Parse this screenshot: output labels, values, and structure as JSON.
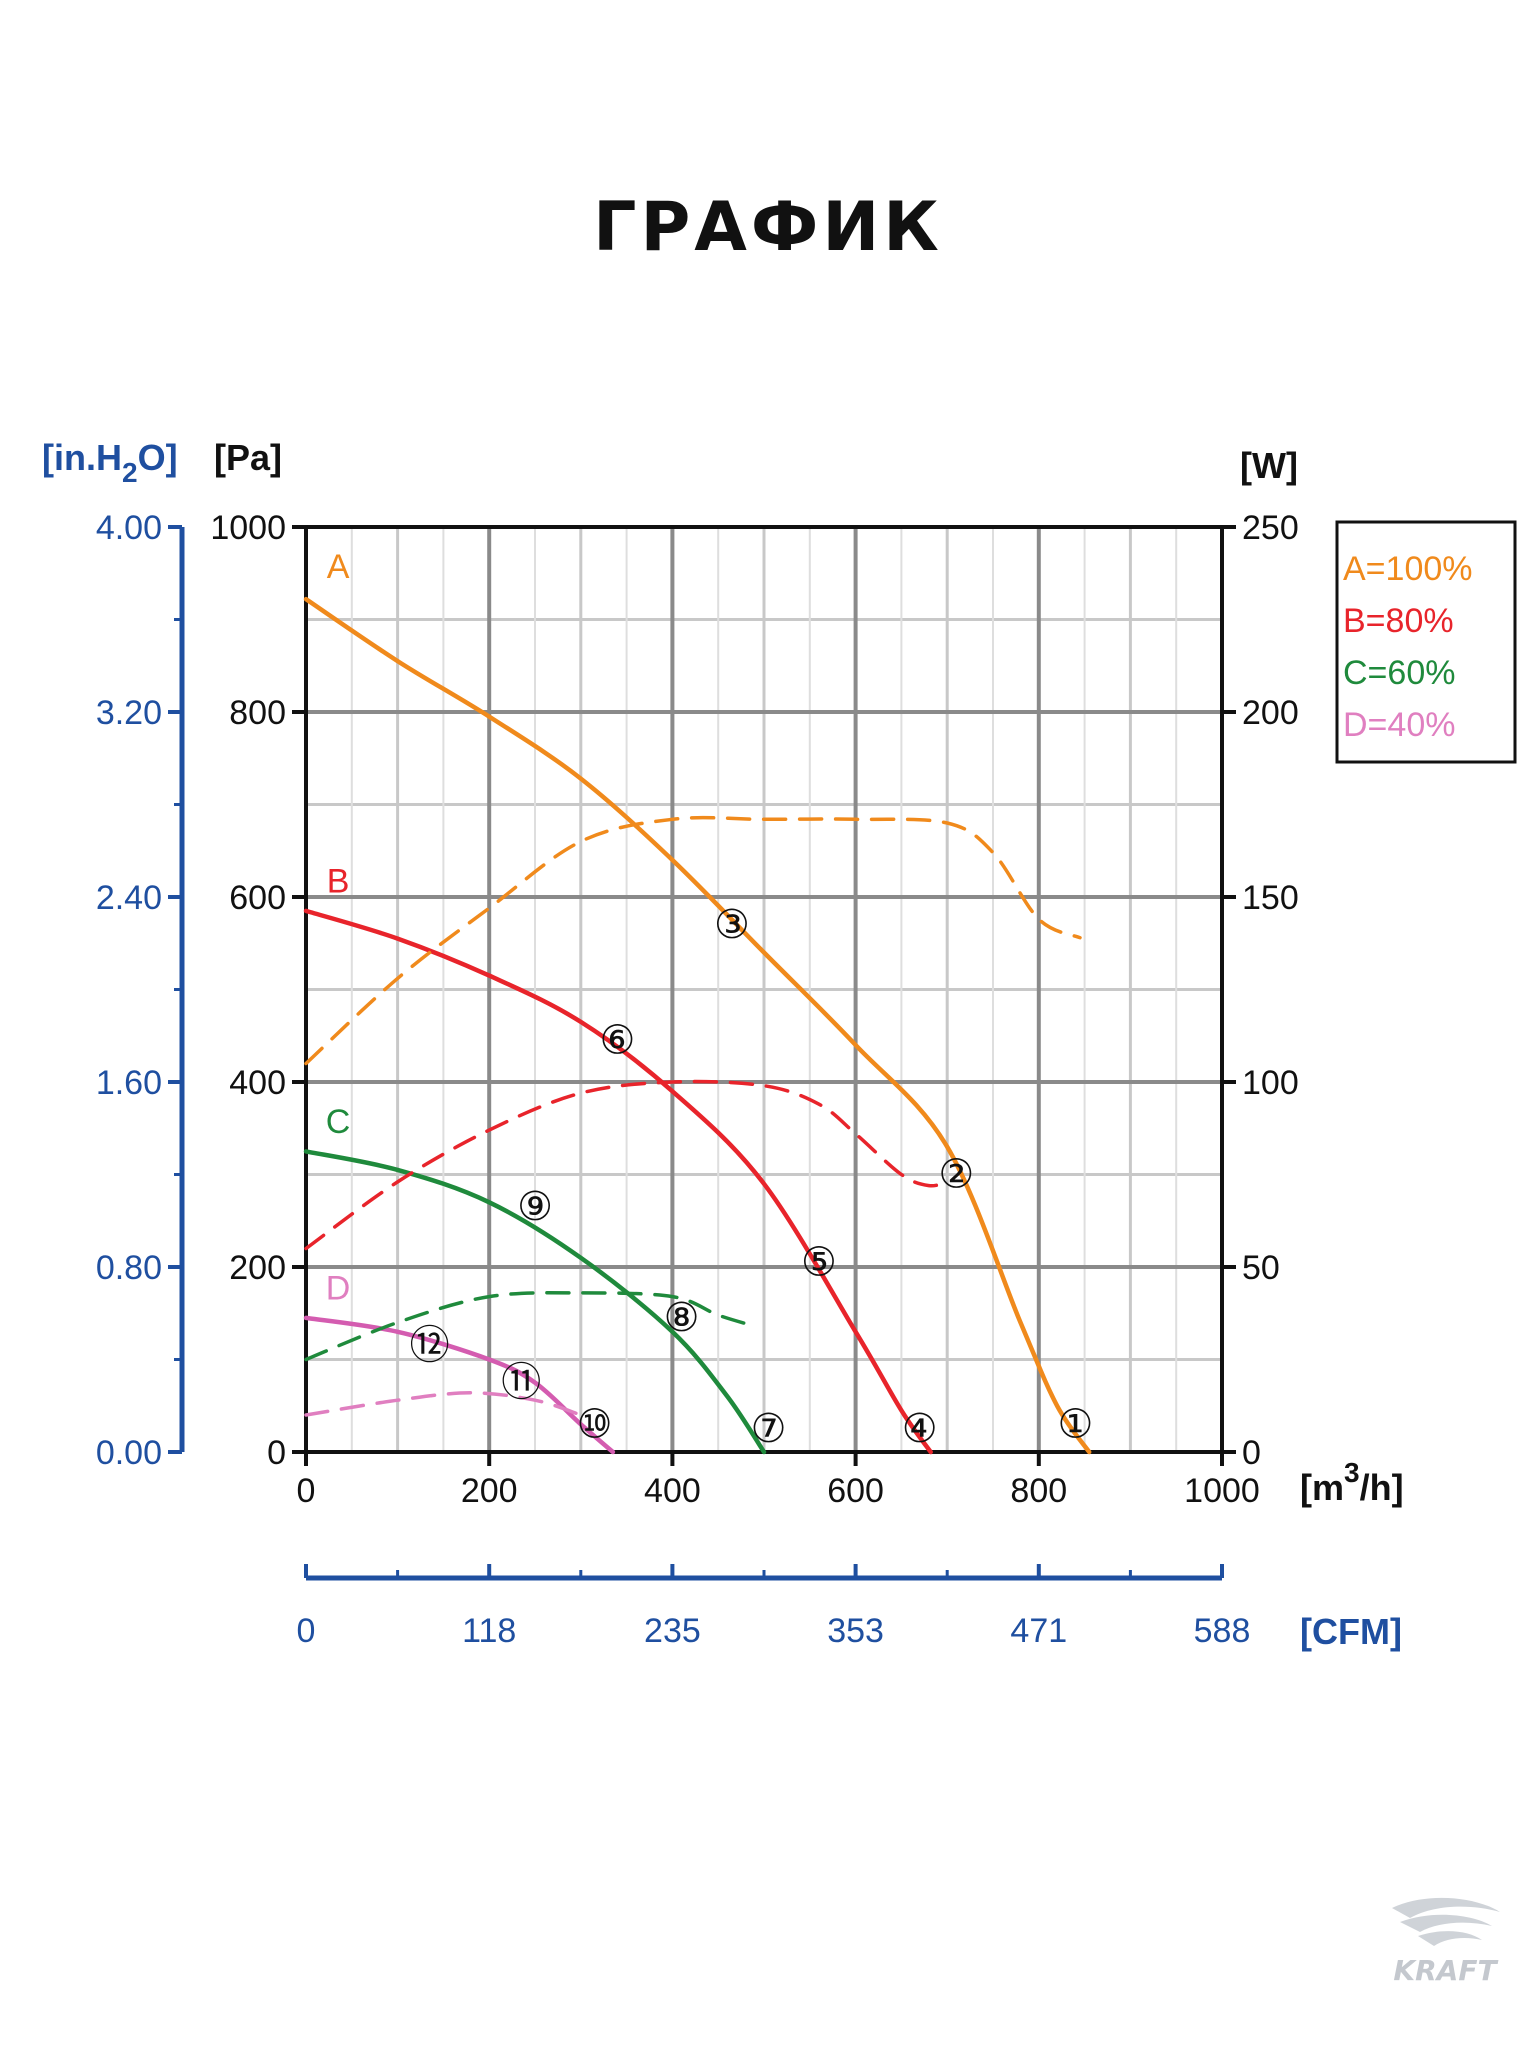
{
  "page": {
    "title": "ГРАФИК"
  },
  "chart_data": {
    "type": "line",
    "title": "ГРАФИК",
    "x_axis": {
      "unit": "[m³/h]",
      "unit_main": "[m",
      "unit_sup": "3",
      "unit_tail": "/h]",
      "range": [
        0,
        1000
      ],
      "ticks": [
        0,
        200,
        400,
        600,
        800,
        1000
      ]
    },
    "x_axis_secondary": {
      "unit": "[CFM]",
      "ticks": [
        "0",
        "118",
        "235",
        "353",
        "471",
        "588"
      ]
    },
    "y_axis_left": {
      "unit": "[Pa]",
      "range": [
        0,
        1000
      ],
      "ticks": [
        0,
        200,
        400,
        600,
        800,
        1000
      ]
    },
    "y_axis_left_secondary": {
      "unit": "[in.H₂O]",
      "unit_main": "[in.H",
      "unit_sub": "2",
      "unit_tail": "O]",
      "ticks": [
        "0.00",
        "0.80",
        "1.60",
        "2.40",
        "3.20",
        "4.00"
      ]
    },
    "y_axis_right": {
      "unit": "[W]",
      "range": [
        0,
        250
      ],
      "ticks": [
        0,
        50,
        100,
        150,
        200,
        250
      ]
    },
    "grid": true,
    "legend": {
      "position": "top-right",
      "entries": [
        {
          "label": "A=100%",
          "color": "#f08a1c"
        },
        {
          "label": "B=80%",
          "color": "#e8242b"
        },
        {
          "label": "C=60%",
          "color": "#1f8a3c"
        },
        {
          "label": "D=40%",
          "color": "#e07fc0"
        }
      ]
    },
    "series": [
      {
        "name": "A",
        "color": "#f08a1c",
        "kind": "pressure",
        "x": [
          0,
          100,
          200,
          300,
          400,
          500,
          600,
          700,
          780,
          820,
          855
        ],
        "y": [
          922,
          855,
          795,
          728,
          640,
          540,
          440,
          330,
          140,
          50,
          0
        ]
      },
      {
        "name": "B",
        "color": "#e8242b",
        "kind": "pressure",
        "x": [
          0,
          100,
          200,
          300,
          400,
          500,
          600,
          650,
          682
        ],
        "y": [
          585,
          555,
          515,
          465,
          390,
          290,
          130,
          45,
          0
        ]
      },
      {
        "name": "C",
        "color": "#1f8a3c",
        "kind": "pressure",
        "x": [
          0,
          100,
          200,
          300,
          400,
          460,
          500
        ],
        "y": [
          325,
          305,
          270,
          210,
          130,
          60,
          0
        ]
      },
      {
        "name": "D",
        "color": "#d45cb0",
        "kind": "pressure",
        "x": [
          0,
          100,
          200,
          250,
          300,
          335
        ],
        "y": [
          145,
          130,
          100,
          75,
          30,
          0
        ]
      },
      {
        "name": "A",
        "color": "#f08a1c",
        "kind": "power",
        "x": [
          0,
          100,
          200,
          300,
          400,
          500,
          600,
          700,
          750,
          800,
          845
        ],
        "y": [
          105,
          128,
          147,
          165,
          171,
          171,
          171,
          170,
          162,
          144,
          139
        ]
      },
      {
        "name": "B",
        "color": "#e8242b",
        "kind": "power",
        "x": [
          0,
          100,
          200,
          300,
          400,
          500,
          560,
          600,
          650,
          680,
          700
        ],
        "y": [
          55,
          73,
          87,
          97,
          100,
          99,
          94,
          86,
          75,
          72,
          73
        ]
      },
      {
        "name": "C",
        "color": "#1f8a3c",
        "kind": "power",
        "x": [
          0,
          100,
          200,
          300,
          400,
          450,
          490
        ],
        "y": [
          25,
          35,
          42,
          43,
          42,
          37,
          34
        ]
      },
      {
        "name": "D",
        "color": "#e07fc0",
        "kind": "power",
        "x": [
          0,
          100,
          180,
          250,
          300
        ],
        "y": [
          10,
          14,
          16,
          14,
          10
        ]
      }
    ],
    "markers": [
      {
        "label": "①",
        "x": 840,
        "y": 30
      },
      {
        "label": "②",
        "x": 710,
        "y": 300
      },
      {
        "label": "③",
        "x": 465,
        "y": 570
      },
      {
        "label": "④",
        "x": 670,
        "y": 25
      },
      {
        "label": "⑤",
        "x": 560,
        "y": 205
      },
      {
        "label": "⑥",
        "x": 340,
        "y": 445
      },
      {
        "label": "⑦",
        "x": 505,
        "y": 25
      },
      {
        "label": "⑧",
        "x": 410,
        "y": 145
      },
      {
        "label": "⑨",
        "x": 250,
        "y": 265
      },
      {
        "label": "⑩",
        "x": 315,
        "y": 30
      },
      {
        "label": "⑪",
        "x": 235,
        "y": 75
      },
      {
        "label": "⑫",
        "x": 135,
        "y": 115
      }
    ],
    "curve_labels": [
      {
        "text": "A",
        "color": "#f08a1c",
        "x": 35,
        "y": 945
      },
      {
        "text": "B",
        "color": "#e8242b",
        "x": 35,
        "y": 605
      },
      {
        "text": "C",
        "color": "#1f8a3c",
        "x": 35,
        "y": 345
      },
      {
        "text": "D",
        "color": "#e07fc0",
        "x": 35,
        "y": 165
      }
    ]
  },
  "logo": {
    "text": "KRAFT"
  }
}
